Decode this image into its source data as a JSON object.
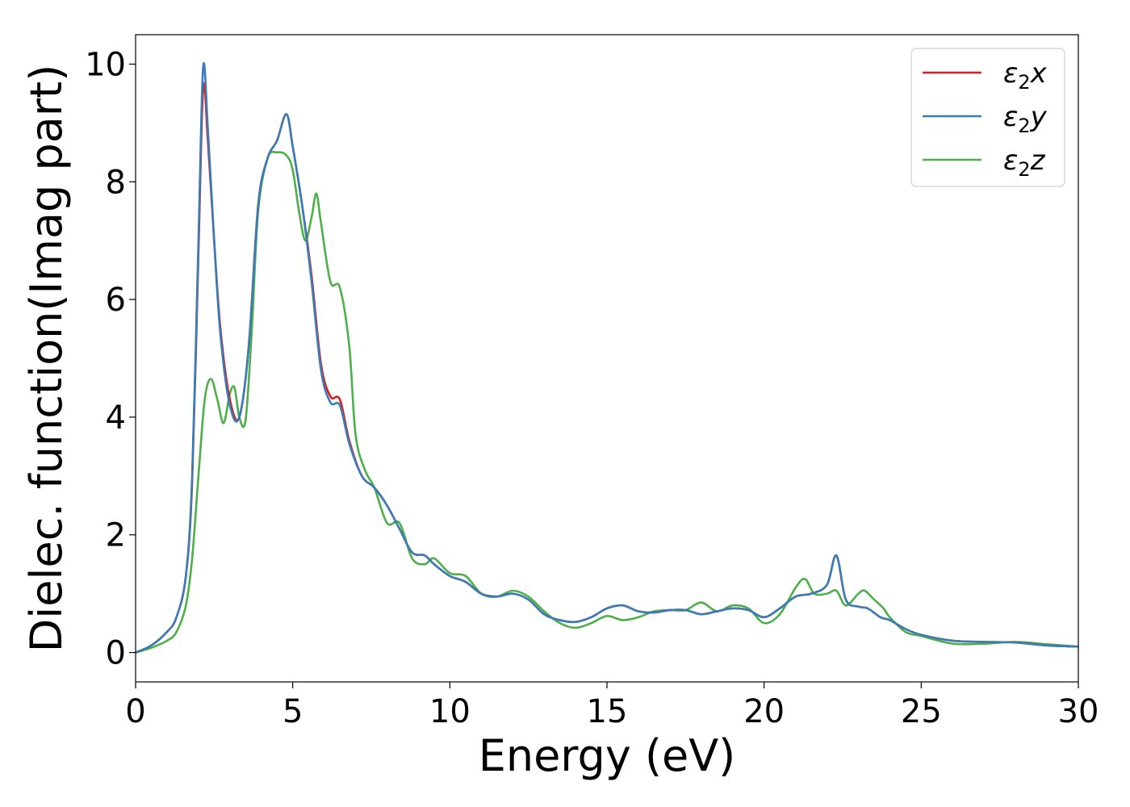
{
  "chart_data": {
    "type": "line",
    "title": "",
    "xlabel": "Energy (eV)",
    "ylabel": "Dielec. function(Imag part)",
    "xlim": [
      0,
      30
    ],
    "ylim": [
      -0.5,
      10.5
    ],
    "xticks": [
      0,
      5,
      10,
      15,
      20,
      25,
      30
    ],
    "xtick_labels": [
      "0",
      "5",
      "10",
      "15",
      "20",
      "25",
      "30"
    ],
    "yticks": [
      0,
      2,
      4,
      6,
      8,
      10
    ],
    "ytick_labels": [
      "0",
      "2",
      "4",
      "6",
      "8",
      "10"
    ],
    "grid": false,
    "legend_position": "top-right",
    "series": [
      {
        "name": "ε₂x",
        "legend_base": "ε",
        "legend_sub": "2",
        "legend_suffix": "x",
        "color": "#e41a1c",
        "x": [
          0,
          0.5,
          1,
          1.3,
          1.6,
          1.8,
          2.0,
          2.15,
          2.3,
          2.5,
          2.7,
          3.0,
          3.3,
          3.6,
          3.9,
          4.2,
          4.5,
          4.8,
          5.0,
          5.3,
          5.6,
          5.9,
          6.2,
          6.5,
          6.8,
          7.2,
          7.6,
          8.0,
          8.4,
          8.8,
          9.2,
          9.5,
          10.0,
          10.5,
          11.0,
          11.5,
          12.0,
          12.5,
          13.0,
          13.5,
          14.0,
          14.5,
          15.0,
          15.5,
          16.0,
          16.5,
          17.0,
          17.5,
          18.0,
          18.5,
          19.0,
          19.5,
          20.0,
          20.5,
          21.0,
          21.5,
          22.0,
          22.3,
          22.6,
          23.0,
          23.3,
          23.7,
          24.0,
          24.5,
          25.0,
          26.0,
          27.0,
          28.0,
          29.0,
          30.0
        ],
        "y": [
          0,
          0.12,
          0.35,
          0.6,
          1.3,
          2.9,
          6.8,
          9.6,
          8.7,
          7.0,
          5.5,
          4.3,
          4.0,
          5.2,
          7.6,
          8.4,
          8.7,
          9.15,
          8.6,
          7.6,
          6.4,
          4.9,
          4.35,
          4.3,
          3.6,
          3.0,
          2.8,
          2.5,
          2.1,
          1.7,
          1.65,
          1.5,
          1.3,
          1.2,
          1.0,
          0.95,
          1.0,
          0.9,
          0.65,
          0.55,
          0.52,
          0.6,
          0.75,
          0.8,
          0.7,
          0.68,
          0.72,
          0.72,
          0.65,
          0.7,
          0.75,
          0.72,
          0.6,
          0.75,
          0.95,
          1.0,
          1.15,
          1.65,
          0.9,
          0.78,
          0.75,
          0.6,
          0.55,
          0.4,
          0.3,
          0.2,
          0.18,
          0.17,
          0.12,
          0.1
        ]
      },
      {
        "name": "ε₂y",
        "legend_base": "ε",
        "legend_sub": "2",
        "legend_suffix": "y",
        "color": "#377eb8",
        "x": [
          0,
          0.5,
          1,
          1.3,
          1.6,
          1.8,
          2.0,
          2.15,
          2.3,
          2.5,
          2.7,
          3.0,
          3.3,
          3.6,
          3.9,
          4.2,
          4.5,
          4.8,
          5.0,
          5.3,
          5.6,
          5.9,
          6.2,
          6.5,
          6.8,
          7.2,
          7.6,
          8.0,
          8.4,
          8.8,
          9.2,
          9.5,
          10.0,
          10.5,
          11.0,
          11.5,
          12.0,
          12.5,
          13.0,
          13.5,
          14.0,
          14.5,
          15.0,
          15.5,
          16.0,
          16.5,
          17.0,
          17.5,
          18.0,
          18.5,
          19.0,
          19.5,
          20.0,
          20.5,
          21.0,
          21.5,
          22.0,
          22.3,
          22.6,
          23.0,
          23.3,
          23.7,
          24.0,
          24.5,
          25.0,
          26.0,
          27.0,
          28.0,
          29.0,
          30.0
        ],
        "y": [
          0,
          0.12,
          0.35,
          0.6,
          1.3,
          3.0,
          7.0,
          9.95,
          8.9,
          7.0,
          5.4,
          4.2,
          4.0,
          5.2,
          7.6,
          8.4,
          8.7,
          9.15,
          8.6,
          7.6,
          6.3,
          4.8,
          4.25,
          4.2,
          3.55,
          3.0,
          2.8,
          2.5,
          2.1,
          1.7,
          1.65,
          1.5,
          1.3,
          1.2,
          1.0,
          0.95,
          1.0,
          0.9,
          0.65,
          0.55,
          0.52,
          0.6,
          0.75,
          0.8,
          0.7,
          0.68,
          0.72,
          0.72,
          0.65,
          0.7,
          0.75,
          0.72,
          0.6,
          0.75,
          0.95,
          1.0,
          1.15,
          1.65,
          0.9,
          0.78,
          0.75,
          0.6,
          0.55,
          0.4,
          0.3,
          0.2,
          0.18,
          0.17,
          0.12,
          0.1
        ]
      },
      {
        "name": "ε₂z",
        "legend_base": "ε",
        "legend_sub": "2",
        "legend_suffix": "z",
        "color": "#4daf4a",
        "x": [
          0,
          0.5,
          1,
          1.3,
          1.6,
          1.8,
          2.0,
          2.2,
          2.4,
          2.6,
          2.8,
          3.0,
          3.15,
          3.3,
          3.5,
          3.7,
          3.9,
          4.2,
          4.5,
          4.8,
          5.0,
          5.2,
          5.4,
          5.6,
          5.75,
          5.9,
          6.2,
          6.5,
          6.8,
          7.0,
          7.3,
          7.6,
          8.0,
          8.4,
          8.8,
          9.2,
          9.5,
          10.0,
          10.5,
          11.0,
          11.5,
          12.0,
          12.5,
          13.0,
          13.5,
          14.0,
          14.5,
          15.0,
          15.5,
          16.0,
          16.5,
          17.0,
          17.5,
          18.0,
          18.5,
          19.0,
          19.5,
          20.0,
          20.5,
          21.0,
          21.3,
          21.6,
          22.0,
          22.3,
          22.6,
          23.0,
          23.2,
          23.5,
          23.8,
          24.0,
          24.5,
          25.0,
          26.0,
          27.0,
          28.0,
          29.0,
          30.0
        ],
        "y": [
          0,
          0.08,
          0.2,
          0.35,
          0.8,
          1.6,
          3.0,
          4.3,
          4.65,
          4.3,
          3.9,
          4.4,
          4.5,
          4.0,
          3.95,
          5.5,
          7.5,
          8.4,
          8.5,
          8.45,
          8.2,
          7.5,
          7.0,
          7.4,
          7.8,
          7.3,
          6.3,
          6.2,
          5.2,
          3.7,
          3.1,
          2.8,
          2.2,
          2.2,
          1.6,
          1.5,
          1.6,
          1.35,
          1.3,
          1.0,
          0.95,
          1.05,
          0.95,
          0.7,
          0.5,
          0.42,
          0.5,
          0.62,
          0.55,
          0.6,
          0.7,
          0.72,
          0.72,
          0.85,
          0.7,
          0.8,
          0.75,
          0.5,
          0.65,
          1.1,
          1.25,
          1.0,
          1.0,
          1.05,
          0.8,
          1.0,
          1.05,
          0.9,
          0.75,
          0.6,
          0.35,
          0.28,
          0.15,
          0.15,
          0.18,
          0.14,
          0.1
        ]
      }
    ]
  }
}
